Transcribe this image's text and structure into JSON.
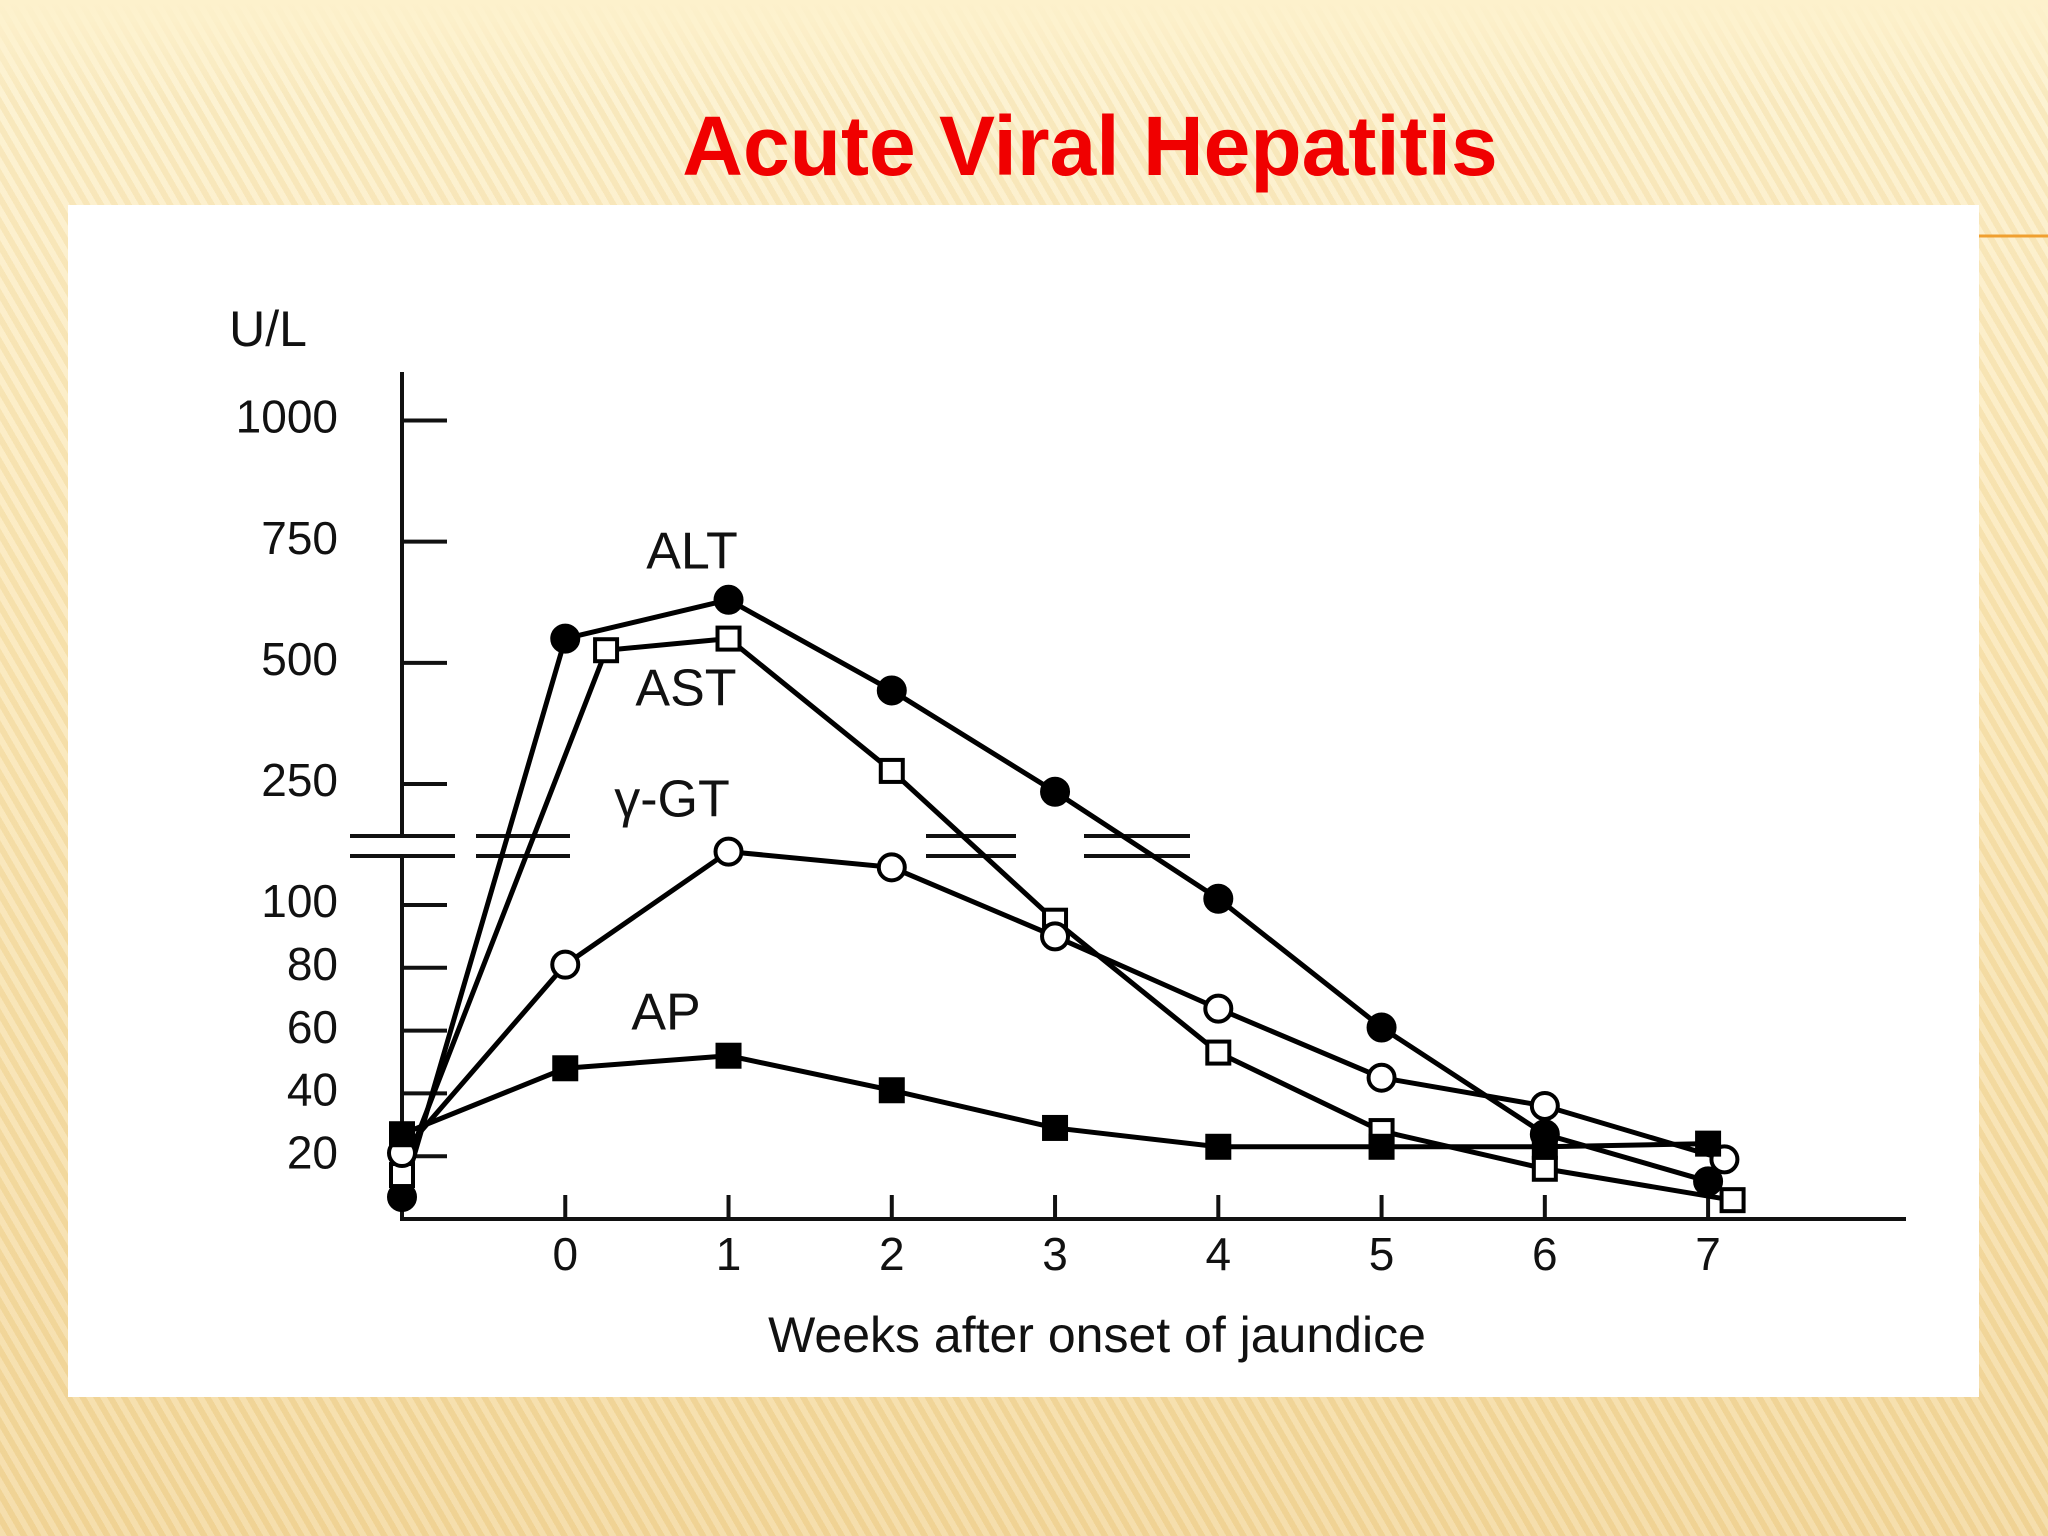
{
  "chart_data": {
    "type": "line",
    "title": "Acute Viral Hepatitis",
    "y_label": "U/L",
    "x_label": "Weeks after onset of jaundice",
    "xlim": [
      -1,
      8.2
    ],
    "xticks": [
      0,
      1,
      2,
      3,
      4,
      5,
      6,
      7
    ],
    "ylim": [
      0,
      1100
    ],
    "yticks": [
      20,
      40,
      60,
      80,
      100,
      250,
      500,
      750,
      1000
    ],
    "series": [
      {
        "name": "ALT",
        "color": "#000000",
        "marker": "circle",
        "filled": true,
        "x": [
          -1,
          0,
          1,
          2,
          3,
          4,
          5,
          6,
          7
        ],
        "values": [
          7,
          550,
          630,
          443,
          234,
          102,
          61,
          27,
          12
        ]
      },
      {
        "name": "AST",
        "color": "#000000",
        "marker": "square",
        "filled": false,
        "x": [
          -1,
          0.25,
          1,
          2,
          3,
          4,
          5,
          6,
          7.15
        ],
        "values": [
          14,
          526,
          550,
          277,
          95,
          53,
          28,
          16,
          6
        ]
      },
      {
        "name": "γ-GT",
        "color": "#000000",
        "marker": "circle",
        "filled": false,
        "x": [
          -1,
          0,
          1,
          2,
          3,
          4,
          5,
          6,
          7.1
        ],
        "values": [
          21,
          81,
          117,
          112,
          90,
          67,
          45,
          36,
          19
        ]
      },
      {
        "name": "AP",
        "color": "#000000",
        "marker": "square",
        "filled": true,
        "x": [
          -1,
          0,
          1,
          2,
          3,
          4,
          5,
          6,
          7
        ],
        "values": [
          27,
          48,
          52,
          41,
          29,
          23,
          23,
          23,
          24
        ]
      }
    ]
  }
}
